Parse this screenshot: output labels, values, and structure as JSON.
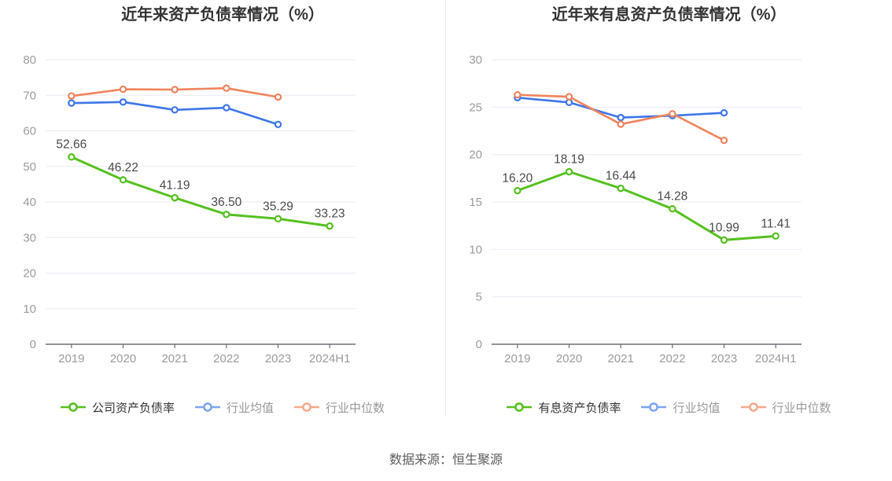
{
  "page": {
    "background": "#ffffff"
  },
  "colors": {
    "title": "#333333",
    "grid_line": "#e7ebf4",
    "axis_line": "#6b6f75",
    "axis_label": "#9b9b9b",
    "data_label": "#4a4a4a",
    "divider": "#ececec",
    "footer": "#5c5c5c",
    "marker_fill": "#ffffff"
  },
  "footer": {
    "source_label": "数据来源：恒生聚源"
  },
  "chart_data": [
    {
      "type": "line",
      "title": "近年来资产负债率情况（%）",
      "xlabel": "",
      "ylabel": "",
      "categories": [
        "2019",
        "2020",
        "2021",
        "2022",
        "2023",
        "2024H1"
      ],
      "ylim": [
        0,
        80
      ],
      "ytick_step": 10,
      "grid": true,
      "legend_position": "bottom",
      "series": [
        {
          "name": "公司资产负债率",
          "color": "#55c01f",
          "legend_color": "#55c01f",
          "legend_text_color": "#333333",
          "line_width": 3,
          "values": [
            52.66,
            46.22,
            41.19,
            36.5,
            35.29,
            33.23
          ],
          "data_labels": [
            "52.66",
            "46.22",
            "41.19",
            "36.50",
            "35.29",
            "33.23"
          ]
        },
        {
          "name": "行业均值",
          "color": "#3d76e8",
          "legend_color": "#7da4f0",
          "legend_text_color": "#999999",
          "line_width": 2.6,
          "values": [
            67.8,
            68.1,
            65.9,
            66.5,
            61.8
          ]
        },
        {
          "name": "行业中位数",
          "color": "#f0835c",
          "legend_color": "#f6a98e",
          "legend_text_color": "#999999",
          "line_width": 2.6,
          "values": [
            69.8,
            71.7,
            71.6,
            72.0,
            69.5
          ]
        }
      ]
    },
    {
      "type": "line",
      "title": "近年来有息资产负债率情况（%）",
      "xlabel": "",
      "ylabel": "",
      "categories": [
        "2019",
        "2020",
        "2021",
        "2022",
        "2023",
        "2024H1"
      ],
      "ylim": [
        0,
        30
      ],
      "ytick_step": 5,
      "grid": true,
      "legend_position": "bottom",
      "series": [
        {
          "name": "有息资产负债率",
          "color": "#55c01f",
          "legend_color": "#55c01f",
          "legend_text_color": "#333333",
          "line_width": 3,
          "values": [
            16.2,
            18.19,
            16.44,
            14.28,
            10.99,
            11.41
          ],
          "data_labels": [
            "16.20",
            "18.19",
            "16.44",
            "14.28",
            "10.99",
            "11.41"
          ]
        },
        {
          "name": "行业均值",
          "color": "#3d76e8",
          "legend_color": "#7da4f0",
          "legend_text_color": "#999999",
          "line_width": 2.6,
          "values": [
            26.0,
            25.5,
            23.9,
            24.1,
            24.4
          ]
        },
        {
          "name": "行业中位数",
          "color": "#f0835c",
          "legend_color": "#f6a98e",
          "legend_text_color": "#999999",
          "line_width": 2.6,
          "values": [
            26.3,
            26.1,
            23.2,
            24.3,
            21.5
          ]
        }
      ]
    }
  ]
}
